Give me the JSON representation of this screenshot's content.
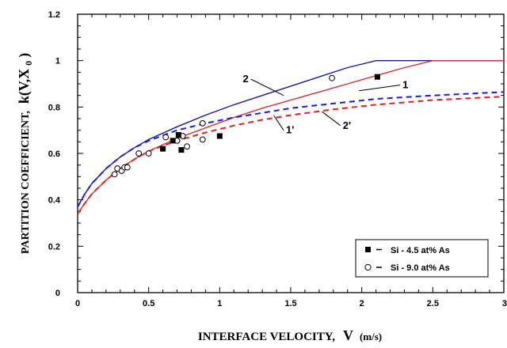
{
  "chart_data": {
    "type": "line",
    "xlabel_main": "INTERFACE VELOCITY,",
    "xlabel_symbol": "V",
    "xlabel_unit": "(m/s)",
    "ylabel_main": "PARTITION COEFFICIENT,",
    "ylabel_symbol": "k(V,X",
    "ylabel_sub": "0",
    "ylabel_close": ")",
    "xlim": [
      0,
      3
    ],
    "ylim": [
      0,
      1.2
    ],
    "x_ticks": [
      0,
      0.5,
      1,
      1.5,
      2,
      2.5,
      3
    ],
    "x_tick_labels": [
      "0",
      "0.5",
      "1",
      "1.5",
      "2",
      "2.5",
      "3"
    ],
    "y_ticks": [
      0,
      0.2,
      0.4,
      0.6,
      0.8,
      1,
      1.2
    ],
    "y_tick_labels": [
      "0",
      "0.2",
      "0.4",
      "0.6",
      "0.8",
      "1",
      "1.2"
    ],
    "grid": false,
    "legend_position": "bottom-right",
    "legend": [
      {
        "label": "Si - 4.5 at% As",
        "marker": "filled-square",
        "line": "dashed"
      },
      {
        "label": "Si - 9.0 at% As",
        "marker": "open-circle",
        "line": "dashed"
      }
    ],
    "series": [
      {
        "name": "2",
        "color": "#1a1a99",
        "style": "solid",
        "x": [
          0,
          0.05,
          0.1,
          0.2,
          0.3,
          0.4,
          0.5,
          0.7,
          0.9,
          1.1,
          1.3,
          1.5,
          1.7,
          1.9,
          2.1,
          2.5,
          3.0
        ],
        "y": [
          0.37,
          0.425,
          0.47,
          0.535,
          0.585,
          0.625,
          0.66,
          0.715,
          0.765,
          0.81,
          0.85,
          0.89,
          0.93,
          0.97,
          1.0,
          1.0,
          1.0
        ]
      },
      {
        "name": "1",
        "color": "#cc3333",
        "style": "solid",
        "x": [
          0,
          0.05,
          0.1,
          0.2,
          0.3,
          0.4,
          0.5,
          0.7,
          0.9,
          1.1,
          1.3,
          1.5,
          1.7,
          1.9,
          2.1,
          2.3,
          2.5,
          3.0
        ],
        "y": [
          0.34,
          0.385,
          0.425,
          0.485,
          0.535,
          0.575,
          0.61,
          0.665,
          0.71,
          0.755,
          0.795,
          0.83,
          0.865,
          0.9,
          0.935,
          0.97,
          1.0,
          1.0
        ]
      },
      {
        "name": "2'",
        "color": "#1a1aee",
        "style": "dashed",
        "x": [
          0,
          0.05,
          0.1,
          0.2,
          0.3,
          0.4,
          0.5,
          0.7,
          0.9,
          1.1,
          1.3,
          1.5,
          1.8,
          2.1,
          2.5,
          3.0
        ],
        "y": [
          0.37,
          0.425,
          0.47,
          0.535,
          0.585,
          0.625,
          0.655,
          0.7,
          0.73,
          0.755,
          0.775,
          0.795,
          0.815,
          0.835,
          0.85,
          0.865
        ]
      },
      {
        "name": "1'",
        "color": "#dd2222",
        "style": "dashed",
        "x": [
          0,
          0.05,
          0.1,
          0.2,
          0.3,
          0.4,
          0.5,
          0.7,
          0.9,
          1.1,
          1.3,
          1.5,
          1.8,
          2.1,
          2.5,
          3.0
        ],
        "y": [
          0.34,
          0.385,
          0.425,
          0.485,
          0.535,
          0.575,
          0.61,
          0.655,
          0.69,
          0.72,
          0.745,
          0.765,
          0.79,
          0.81,
          0.83,
          0.845
        ]
      }
    ],
    "curve_labels": [
      {
        "text": "2",
        "x": 1.22,
        "y": 0.92,
        "tx": 1.45,
        "ty": 0.85
      },
      {
        "text": "1",
        "x": 2.27,
        "y": 0.895,
        "tx": 1.98,
        "ty": 0.87
      },
      {
        "text": "2'",
        "x": 1.85,
        "y": 0.72,
        "tx": 1.72,
        "ty": 0.78
      },
      {
        "text": "1'",
        "x": 1.45,
        "y": 0.7,
        "tx": 1.38,
        "ty": 0.765
      }
    ],
    "points_filled_squares": [
      {
        "x": 0.6,
        "y": 0.62
      },
      {
        "x": 0.67,
        "y": 0.655
      },
      {
        "x": 0.71,
        "y": 0.68
      },
      {
        "x": 0.73,
        "y": 0.615
      },
      {
        "x": 1.0,
        "y": 0.675
      },
      {
        "x": 2.11,
        "y": 0.93
      }
    ],
    "points_open_circles": [
      {
        "x": 0.26,
        "y": 0.51
      },
      {
        "x": 0.28,
        "y": 0.535
      },
      {
        "x": 0.31,
        "y": 0.525
      },
      {
        "x": 0.33,
        "y": 0.54
      },
      {
        "x": 0.35,
        "y": 0.54
      },
      {
        "x": 0.43,
        "y": 0.6
      },
      {
        "x": 0.5,
        "y": 0.6
      },
      {
        "x": 0.62,
        "y": 0.67
      },
      {
        "x": 0.7,
        "y": 0.655
      },
      {
        "x": 0.74,
        "y": 0.675
      },
      {
        "x": 0.77,
        "y": 0.63
      },
      {
        "x": 0.88,
        "y": 0.66
      },
      {
        "x": 0.88,
        "y": 0.73
      },
      {
        "x": 1.79,
        "y": 0.925
      }
    ]
  }
}
